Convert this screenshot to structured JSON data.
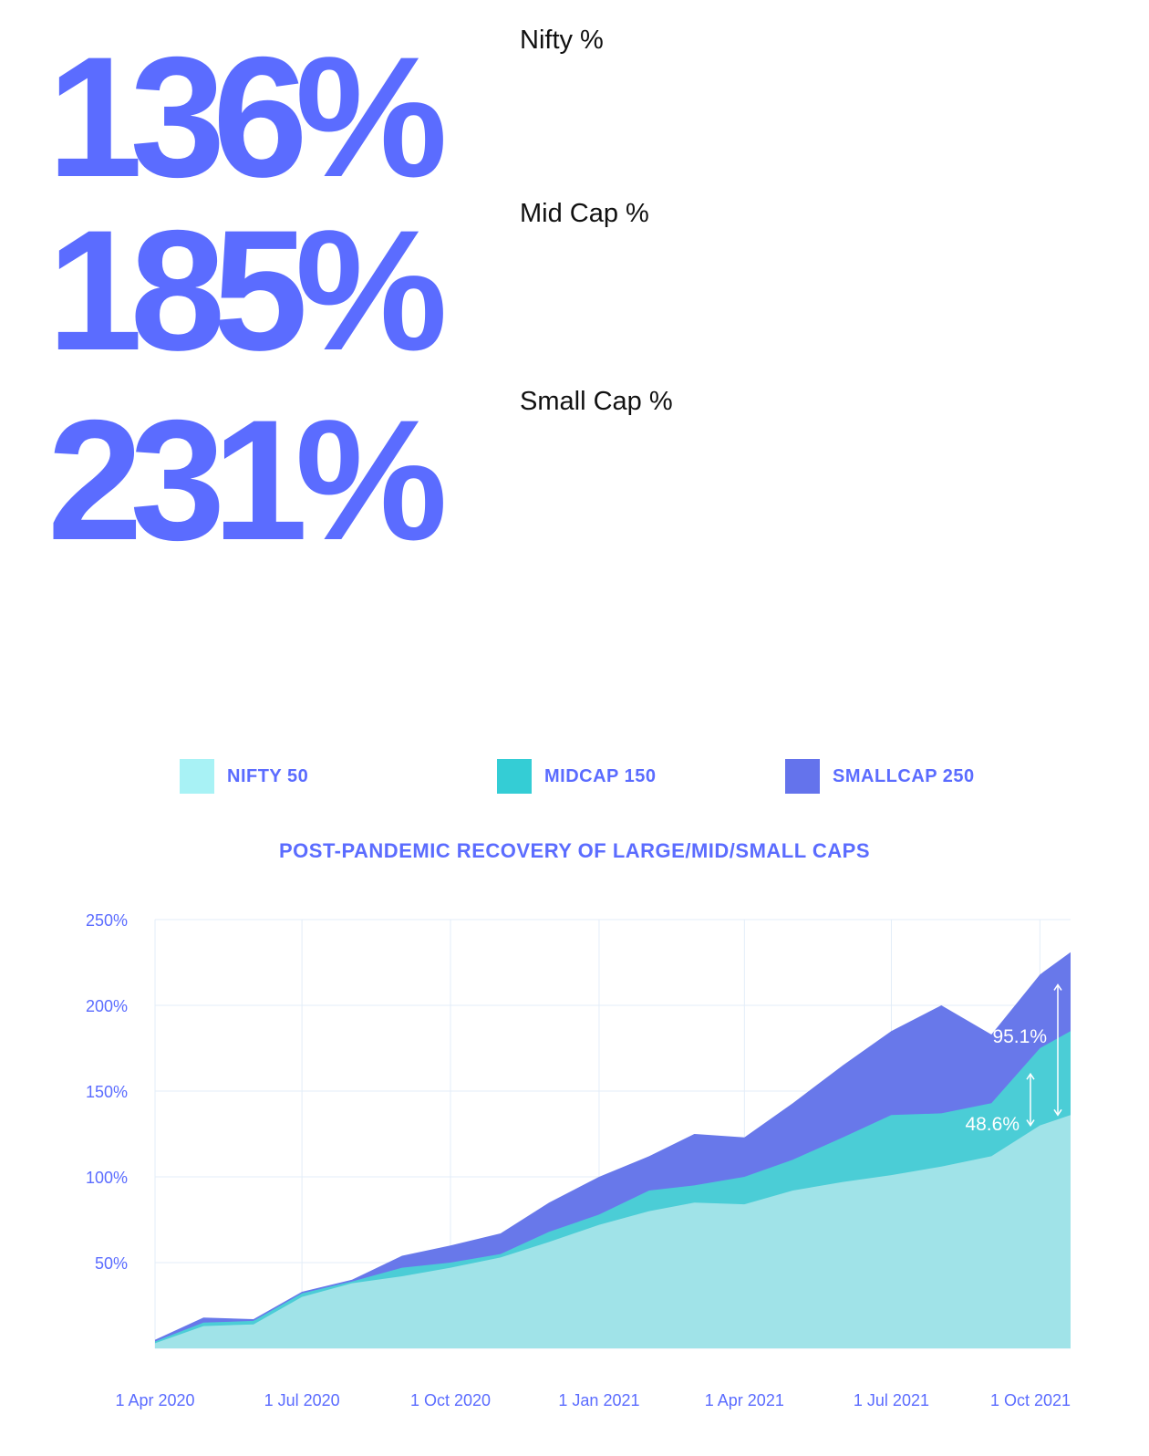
{
  "stats": [
    {
      "value": "136%",
      "label": "Nifty %"
    },
    {
      "value": "185%",
      "label": "Mid Cap %"
    },
    {
      "value": "231%",
      "label": "Small Cap %"
    }
  ],
  "legend": [
    {
      "label": "NIFTY 50",
      "color": "#a8f2f5"
    },
    {
      "label": "MIDCAP 150",
      "color": "#34cdd5"
    },
    {
      "label": "SMALLCAP 250",
      "color": "#6473ec"
    }
  ],
  "chart_data": {
    "type": "area",
    "title": "POST-PANDEMIC RECOVERY OF LARGE/MID/SMALL CAPS",
    "xlabel": "",
    "ylabel": "",
    "x_ticks": [
      "1 Apr 2020",
      "1 Jul 2020",
      "1 Oct 2020",
      "1 Jan 2021",
      "1 Apr 2021",
      "1 Jul 2021",
      "1 Oct 2021"
    ],
    "x": [
      "2020-04-01",
      "2020-05-01",
      "2020-06-01",
      "2020-07-01",
      "2020-08-01",
      "2020-09-01",
      "2020-10-01",
      "2020-11-01",
      "2020-12-01",
      "2021-01-01",
      "2021-02-01",
      "2021-03-01",
      "2021-04-01",
      "2021-05-01",
      "2021-06-01",
      "2021-07-01",
      "2021-08-01",
      "2021-09-01",
      "2021-10-01",
      "2021-10-20"
    ],
    "ylim": [
      0,
      250
    ],
    "y_ticks": [
      "250%",
      "200%",
      "150%",
      "100%",
      "50%"
    ],
    "y_tick_values": [
      250,
      200,
      150,
      100,
      50
    ],
    "grid": true,
    "legend_position": "top",
    "series": [
      {
        "name": "NIFTY 50",
        "color": "#a0e3e8",
        "values": [
          3,
          13,
          14,
          30,
          38,
          42,
          47,
          53,
          62,
          72,
          80,
          85,
          84,
          92,
          97,
          101,
          106,
          112,
          130,
          136
        ]
      },
      {
        "name": "MIDCAP 150",
        "color": "#4bcdd6",
        "values": [
          4,
          15,
          16,
          32,
          39,
          47,
          50,
          55,
          68,
          78,
          92,
          95,
          100,
          110,
          123,
          136,
          137,
          143,
          175,
          185
        ]
      },
      {
        "name": "SMALLCAP 250",
        "color": "#6878ea",
        "values": [
          5,
          18,
          17,
          33,
          40,
          54,
          60,
          67,
          85,
          100,
          112,
          125,
          123,
          143,
          165,
          185,
          200,
          183,
          218,
          231
        ]
      }
    ],
    "annotations": [
      {
        "text": "95.1%",
        "from": 136,
        "to": 212
      },
      {
        "text": "48.6%",
        "from": 130,
        "to": 160
      }
    ]
  }
}
